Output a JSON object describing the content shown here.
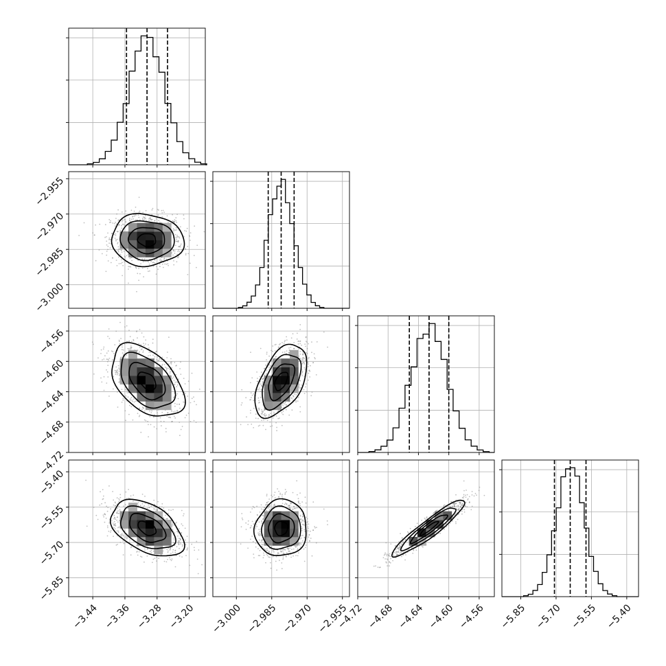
{
  "chart_data": {
    "type": "corner",
    "grid": true,
    "colors": {
      "line": "#000000",
      "points": "#8a8a8a",
      "hist2d_dark": "#000000",
      "hist2d_light": "#ffffff",
      "grid": "#b0b0b0"
    },
    "parameters": [
      {
        "range": [
          -3.5,
          -3.16
        ],
        "ticks": [
          -3.44,
          -3.36,
          -3.28,
          -3.2
        ],
        "tick_labels": [
          "−3.44",
          "−3.36",
          "−3.28",
          "−3.20"
        ],
        "mean": -3.305,
        "sd": 0.045,
        "quantiles": [
          -3.356,
          -3.305,
          -3.254
        ]
      },
      {
        "range": [
          -3.01,
          -2.952
        ],
        "ticks": [
          -3.0,
          -2.985,
          -2.97,
          -2.955
        ],
        "tick_labels": [
          "−3.000",
          "−2.985",
          "−2.970",
          "−2.955"
        ],
        "mean": -2.981,
        "sd": 0.0055,
        "quantiles": [
          -2.9865,
          -2.981,
          -2.9755
        ]
      },
      {
        "range": [
          -4.72,
          -4.54
        ],
        "ticks": [
          -4.72,
          -4.68,
          -4.64,
          -4.6,
          -4.56
        ],
        "tick_labels": [
          "−4.72",
          "−4.68",
          "−4.64",
          "−4.60",
          "−4.56"
        ],
        "mean": -4.626,
        "sd": 0.024,
        "quantiles": [
          -4.652,
          -4.626,
          -4.6
        ]
      },
      {
        "range": [
          -5.93,
          -5.35
        ],
        "ticks": [
          -5.85,
          -5.7,
          -5.55,
          -5.4
        ],
        "tick_labels": [
          "−5.85",
          "−5.70",
          "−5.55",
          "−5.40"
        ],
        "mean": -5.64,
        "sd": 0.06,
        "quantiles": [
          -5.707,
          -5.64,
          -5.573
        ]
      }
    ],
    "correlations": [
      {
        "pair": [
          0,
          1
        ],
        "rho": -0.05
      },
      {
        "pair": [
          0,
          2
        ],
        "rho": -0.45
      },
      {
        "pair": [
          1,
          2
        ],
        "rho": 0.5
      },
      {
        "pair": [
          0,
          3
        ],
        "rho": -0.45
      },
      {
        "pair": [
          1,
          3
        ],
        "rho": 0.05
      },
      {
        "pair": [
          2,
          3
        ],
        "rho": 0.93
      }
    ],
    "contour_levels_sigma": [
      0.5,
      1.0,
      1.5,
      2.0
    ]
  }
}
